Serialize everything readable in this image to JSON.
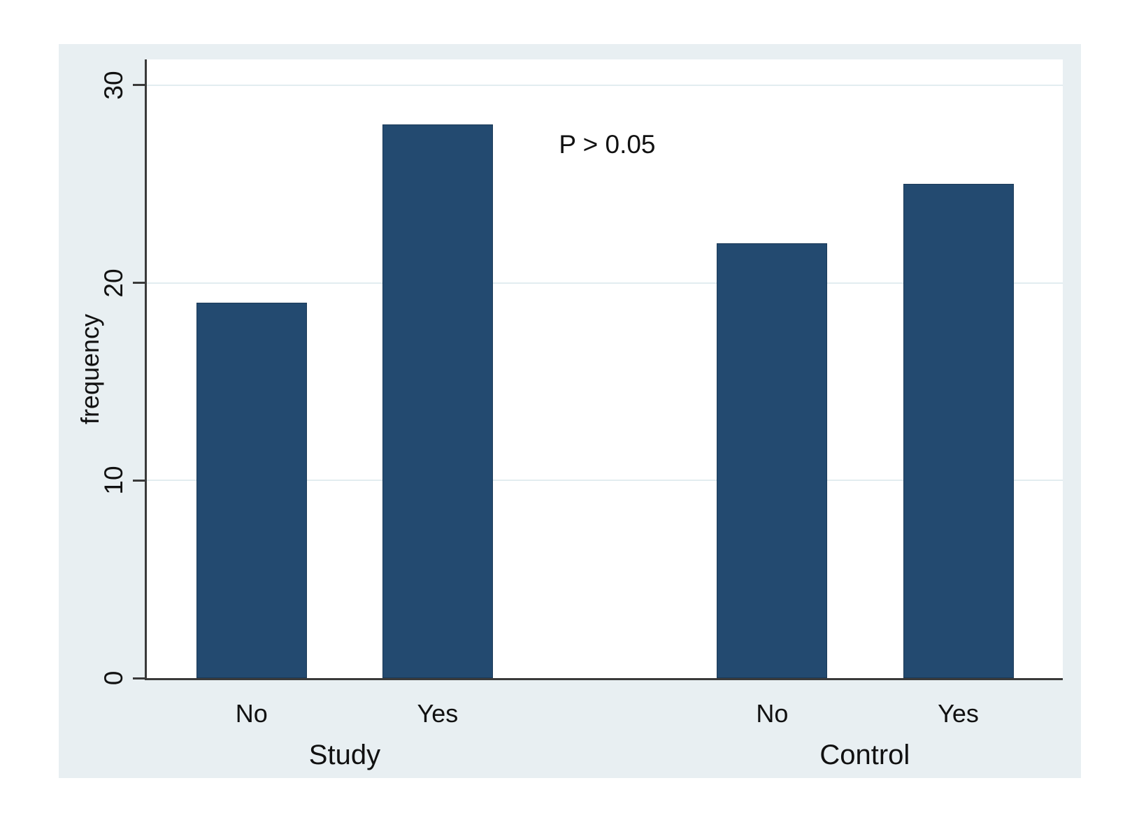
{
  "chart_data": {
    "type": "bar",
    "title": "",
    "xlabel": "",
    "ylabel": "frequency",
    "annotation": {
      "text": "P > 0.05",
      "x_frac": 0.503,
      "y_value": 27
    },
    "groups": [
      {
        "label": "Study",
        "bars": [
          {
            "category": "No",
            "value": 19
          },
          {
            "category": "Yes",
            "value": 28
          }
        ]
      },
      {
        "label": "Control",
        "bars": [
          {
            "category": "No",
            "value": 22
          },
          {
            "category": "Yes",
            "value": 25
          }
        ]
      }
    ],
    "yticks": [
      0,
      10,
      20,
      30
    ],
    "ylim": [
      0,
      31.3
    ],
    "grid": true,
    "legend_position": "none",
    "colors": {
      "bar_fill": "#234a70",
      "bar_border": "#1b3a58",
      "figure_background": "#e8eff2",
      "plot_background": "#ffffff",
      "gridline": "#e2edf0",
      "axis": "#3a3a3a",
      "text": "#111111"
    }
  }
}
